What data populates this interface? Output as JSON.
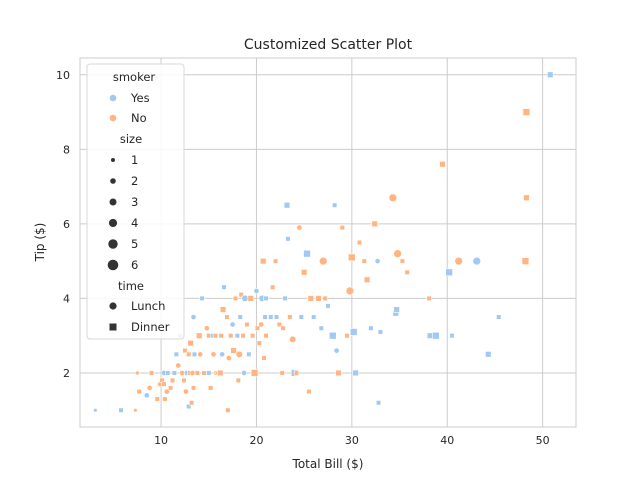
{
  "chart_data": {
    "type": "scatter",
    "title": "Customized Scatter Plot",
    "xlabel": "Total Bill ($)",
    "ylabel": "Tip ($)",
    "xlim": [
      1.5,
      53.5
    ],
    "ylim": [
      0.55,
      10.45
    ],
    "xticks": [
      10,
      20,
      30,
      40,
      50
    ],
    "yticks": [
      2,
      4,
      6,
      8,
      10
    ],
    "grid": true,
    "legend_placement": "upper-left",
    "colors": {
      "Yes": "#a1c9f4",
      "No": "#ffb482"
    },
    "legend": {
      "hue_title": "smoker",
      "hue_levels": [
        "Yes",
        "No"
      ],
      "size_title": "size",
      "size_levels": [
        "1",
        "2",
        "3",
        "4",
        "5",
        "6"
      ],
      "style_title": "time",
      "style_levels": [
        "Lunch",
        "Dinner"
      ]
    },
    "points": [
      {
        "x": 3.1,
        "y": 1.0,
        "smoker": "Yes",
        "time": "Dinner",
        "size": 1
      },
      {
        "x": 5.8,
        "y": 1.0,
        "smoker": "Yes",
        "time": "Dinner",
        "size": 2
      },
      {
        "x": 7.3,
        "y": 1.0,
        "smoker": "No",
        "time": "Dinner",
        "size": 1
      },
      {
        "x": 7.5,
        "y": 2.0,
        "smoker": "No",
        "time": "Lunch",
        "size": 1
      },
      {
        "x": 7.7,
        "y": 1.5,
        "smoker": "No",
        "time": "Dinner",
        "size": 2
      },
      {
        "x": 8.5,
        "y": 1.4,
        "smoker": "Yes",
        "time": "Lunch",
        "size": 2
      },
      {
        "x": 8.8,
        "y": 1.6,
        "smoker": "No",
        "time": "Lunch",
        "size": 2
      },
      {
        "x": 9.0,
        "y": 2.0,
        "smoker": "No",
        "time": "Dinner",
        "size": 2
      },
      {
        "x": 9.6,
        "y": 1.3,
        "smoker": "No",
        "time": "Dinner",
        "size": 2
      },
      {
        "x": 9.9,
        "y": 1.7,
        "smoker": "No",
        "time": "Lunch",
        "size": 2
      },
      {
        "x": 10.1,
        "y": 1.8,
        "smoker": "No",
        "time": "Dinner",
        "size": 2
      },
      {
        "x": 10.3,
        "y": 2.0,
        "smoker": "Yes",
        "time": "Lunch",
        "size": 2
      },
      {
        "x": 10.3,
        "y": 1.7,
        "smoker": "No",
        "time": "Dinner",
        "size": 2
      },
      {
        "x": 10.4,
        "y": 1.3,
        "smoker": "No",
        "time": "Dinner",
        "size": 2
      },
      {
        "x": 10.6,
        "y": 1.5,
        "smoker": "No",
        "time": "Lunch",
        "size": 2
      },
      {
        "x": 10.7,
        "y": 2.0,
        "smoker": "Yes",
        "time": "Dinner",
        "size": 2
      },
      {
        "x": 11.0,
        "y": 1.6,
        "smoker": "No",
        "time": "Dinner",
        "size": 2
      },
      {
        "x": 11.2,
        "y": 1.8,
        "smoker": "No",
        "time": "Dinner",
        "size": 2
      },
      {
        "x": 11.4,
        "y": 2.0,
        "smoker": "Yes",
        "time": "Dinner",
        "size": 2
      },
      {
        "x": 11.6,
        "y": 2.5,
        "smoker": "Yes",
        "time": "Dinner",
        "size": 2
      },
      {
        "x": 11.8,
        "y": 2.2,
        "smoker": "No",
        "time": "Lunch",
        "size": 2
      },
      {
        "x": 12.0,
        "y": 3.0,
        "smoker": "Yes",
        "time": "Lunch",
        "size": 2
      },
      {
        "x": 12.2,
        "y": 2.0,
        "smoker": "No",
        "time": "Lunch",
        "size": 2
      },
      {
        "x": 12.4,
        "y": 1.8,
        "smoker": "No",
        "time": "Dinner",
        "size": 2
      },
      {
        "x": 12.5,
        "y": 2.6,
        "smoker": "No",
        "time": "Dinner",
        "size": 2
      },
      {
        "x": 12.6,
        "y": 1.5,
        "smoker": "No",
        "time": "Lunch",
        "size": 2
      },
      {
        "x": 12.7,
        "y": 2.0,
        "smoker": "Yes",
        "time": "Lunch",
        "size": 2
      },
      {
        "x": 12.9,
        "y": 1.1,
        "smoker": "Yes",
        "time": "Dinner",
        "size": 2
      },
      {
        "x": 12.9,
        "y": 2.5,
        "smoker": "No",
        "time": "Dinner",
        "size": 2
      },
      {
        "x": 13.0,
        "y": 2.0,
        "smoker": "No",
        "time": "Dinner",
        "size": 2
      },
      {
        "x": 13.1,
        "y": 2.8,
        "smoker": "No",
        "time": "Dinner",
        "size": 3
      },
      {
        "x": 13.2,
        "y": 1.2,
        "smoker": "No",
        "time": "Dinner",
        "size": 2
      },
      {
        "x": 13.3,
        "y": 2.0,
        "smoker": "No",
        "time": "Lunch",
        "size": 2
      },
      {
        "x": 13.4,
        "y": 3.5,
        "smoker": "Yes",
        "time": "Lunch",
        "size": 2
      },
      {
        "x": 13.4,
        "y": 1.6,
        "smoker": "No",
        "time": "Dinner",
        "size": 2
      },
      {
        "x": 13.5,
        "y": 2.5,
        "smoker": "Yes",
        "time": "Dinner",
        "size": 2
      },
      {
        "x": 13.8,
        "y": 2.0,
        "smoker": "No",
        "time": "Dinner",
        "size": 2
      },
      {
        "x": 14.0,
        "y": 3.0,
        "smoker": "No",
        "time": "Dinner",
        "size": 3
      },
      {
        "x": 14.1,
        "y": 2.5,
        "smoker": "No",
        "time": "Lunch",
        "size": 2
      },
      {
        "x": 14.3,
        "y": 4.0,
        "smoker": "Yes",
        "time": "Dinner",
        "size": 2
      },
      {
        "x": 14.5,
        "y": 2.0,
        "smoker": "No",
        "time": "Dinner",
        "size": 2
      },
      {
        "x": 14.8,
        "y": 3.2,
        "smoker": "No",
        "time": "Lunch",
        "size": 2
      },
      {
        "x": 15.0,
        "y": 2.0,
        "smoker": "Yes",
        "time": "Dinner",
        "size": 2
      },
      {
        "x": 15.0,
        "y": 3.0,
        "smoker": "No",
        "time": "Dinner",
        "size": 2
      },
      {
        "x": 15.2,
        "y": 1.6,
        "smoker": "No",
        "time": "Dinner",
        "size": 2
      },
      {
        "x": 15.4,
        "y": 3.0,
        "smoker": "Yes",
        "time": "Dinner",
        "size": 2
      },
      {
        "x": 15.5,
        "y": 2.5,
        "smoker": "No",
        "time": "Lunch",
        "size": 2
      },
      {
        "x": 15.7,
        "y": 3.0,
        "smoker": "No",
        "time": "Dinner",
        "size": 2
      },
      {
        "x": 15.8,
        "y": 2.0,
        "smoker": "No",
        "time": "Dinner",
        "size": 2
      },
      {
        "x": 16.0,
        "y": 2.0,
        "smoker": "No",
        "time": "Lunch",
        "size": 2
      },
      {
        "x": 16.2,
        "y": 2.0,
        "smoker": "No",
        "time": "Dinner",
        "size": 3
      },
      {
        "x": 16.3,
        "y": 3.0,
        "smoker": "No",
        "time": "Dinner",
        "size": 2
      },
      {
        "x": 16.4,
        "y": 2.5,
        "smoker": "Yes",
        "time": "Lunch",
        "size": 2
      },
      {
        "x": 16.5,
        "y": 3.7,
        "smoker": "No",
        "time": "Dinner",
        "size": 3
      },
      {
        "x": 16.6,
        "y": 4.3,
        "smoker": "Yes",
        "time": "Dinner",
        "size": 2
      },
      {
        "x": 16.9,
        "y": 3.5,
        "smoker": "No",
        "time": "Dinner",
        "size": 2
      },
      {
        "x": 17.0,
        "y": 1.0,
        "smoker": "No",
        "time": "Dinner",
        "size": 2
      },
      {
        "x": 17.1,
        "y": 2.4,
        "smoker": "No",
        "time": "Lunch",
        "size": 2
      },
      {
        "x": 17.3,
        "y": 3.0,
        "smoker": "No",
        "time": "Dinner",
        "size": 2
      },
      {
        "x": 17.5,
        "y": 3.3,
        "smoker": "Yes",
        "time": "Lunch",
        "size": 2
      },
      {
        "x": 17.6,
        "y": 2.6,
        "smoker": "No",
        "time": "Dinner",
        "size": 3
      },
      {
        "x": 17.8,
        "y": 4.0,
        "smoker": "No",
        "time": "Dinner",
        "size": 2
      },
      {
        "x": 18.0,
        "y": 3.0,
        "smoker": "Yes",
        "time": "Dinner",
        "size": 2
      },
      {
        "x": 18.1,
        "y": 1.8,
        "smoker": "No",
        "time": "Dinner",
        "size": 2
      },
      {
        "x": 18.2,
        "y": 2.5,
        "smoker": "No",
        "time": "Lunch",
        "size": 3
      },
      {
        "x": 18.3,
        "y": 3.5,
        "smoker": "Yes",
        "time": "Dinner",
        "size": 2
      },
      {
        "x": 18.4,
        "y": 4.1,
        "smoker": "No",
        "time": "Dinner",
        "size": 2
      },
      {
        "x": 18.6,
        "y": 3.0,
        "smoker": "No",
        "time": "Dinner",
        "size": 2
      },
      {
        "x": 18.7,
        "y": 2.0,
        "smoker": "Yes",
        "time": "Lunch",
        "size": 2
      },
      {
        "x": 18.8,
        "y": 4.0,
        "smoker": "Yes",
        "time": "Lunch",
        "size": 3
      },
      {
        "x": 19.0,
        "y": 3.3,
        "smoker": "No",
        "time": "Dinner",
        "size": 2
      },
      {
        "x": 19.2,
        "y": 2.5,
        "smoker": "Yes",
        "time": "Dinner",
        "size": 2
      },
      {
        "x": 19.4,
        "y": 4.0,
        "smoker": "No",
        "time": "Dinner",
        "size": 3
      },
      {
        "x": 19.6,
        "y": 3.0,
        "smoker": "No",
        "time": "Dinner",
        "size": 2
      },
      {
        "x": 19.8,
        "y": 2.0,
        "smoker": "No",
        "time": "Dinner",
        "size": 4
      },
      {
        "x": 20.0,
        "y": 4.2,
        "smoker": "Yes",
        "time": "Lunch",
        "size": 2
      },
      {
        "x": 20.1,
        "y": 3.2,
        "smoker": "No",
        "time": "Dinner",
        "size": 2
      },
      {
        "x": 20.3,
        "y": 2.8,
        "smoker": "No",
        "time": "Dinner",
        "size": 2
      },
      {
        "x": 20.5,
        "y": 3.3,
        "smoker": "No",
        "time": "Lunch",
        "size": 2
      },
      {
        "x": 20.6,
        "y": 4.0,
        "smoker": "Yes",
        "time": "Lunch",
        "size": 3
      },
      {
        "x": 20.7,
        "y": 5.0,
        "smoker": "No",
        "time": "Dinner",
        "size": 3
      },
      {
        "x": 20.8,
        "y": 2.4,
        "smoker": "No",
        "time": "Dinner",
        "size": 2
      },
      {
        "x": 20.9,
        "y": 3.5,
        "smoker": "Yes",
        "time": "Dinner",
        "size": 2
      },
      {
        "x": 21.0,
        "y": 3.0,
        "smoker": "No",
        "time": "Dinner",
        "size": 2
      },
      {
        "x": 21.0,
        "y": 4.0,
        "smoker": "Yes",
        "time": "Dinner",
        "size": 2
      },
      {
        "x": 21.5,
        "y": 3.5,
        "smoker": "Yes",
        "time": "Dinner",
        "size": 2
      },
      {
        "x": 21.7,
        "y": 4.3,
        "smoker": "No",
        "time": "Dinner",
        "size": 2
      },
      {
        "x": 22.0,
        "y": 5.0,
        "smoker": "No",
        "time": "Dinner",
        "size": 2
      },
      {
        "x": 22.1,
        "y": 3.5,
        "smoker": "Yes",
        "time": "Dinner",
        "size": 2
      },
      {
        "x": 22.4,
        "y": 3.3,
        "smoker": "No",
        "time": "Dinner",
        "size": 2
      },
      {
        "x": 22.7,
        "y": 2.0,
        "smoker": "No",
        "time": "Dinner",
        "size": 2
      },
      {
        "x": 22.8,
        "y": 3.2,
        "smoker": "No",
        "time": "Dinner",
        "size": 2
      },
      {
        "x": 23.0,
        "y": 4.0,
        "smoker": "Yes",
        "time": "Dinner",
        "size": 2
      },
      {
        "x": 23.2,
        "y": 6.5,
        "smoker": "Yes",
        "time": "Dinner",
        "size": 3
      },
      {
        "x": 23.3,
        "y": 5.6,
        "smoker": "Yes",
        "time": "Dinner",
        "size": 2
      },
      {
        "x": 23.5,
        "y": 3.5,
        "smoker": "No",
        "time": "Dinner",
        "size": 2
      },
      {
        "x": 23.8,
        "y": 2.9,
        "smoker": "No",
        "time": "Lunch",
        "size": 3
      },
      {
        "x": 24.0,
        "y": 2.0,
        "smoker": "Yes",
        "time": "Dinner",
        "size": 4
      },
      {
        "x": 24.2,
        "y": 2.0,
        "smoker": "No",
        "time": "Dinner",
        "size": 2
      },
      {
        "x": 24.5,
        "y": 5.9,
        "smoker": "No",
        "time": "Lunch",
        "size": 2
      },
      {
        "x": 24.7,
        "y": 3.5,
        "smoker": "Yes",
        "time": "Dinner",
        "size": 2
      },
      {
        "x": 25.0,
        "y": 4.7,
        "smoker": "No",
        "time": "Dinner",
        "size": 3
      },
      {
        "x": 25.3,
        "y": 5.2,
        "smoker": "Yes",
        "time": "Dinner",
        "size": 4
      },
      {
        "x": 25.5,
        "y": 1.5,
        "smoker": "No",
        "time": "Dinner",
        "size": 2
      },
      {
        "x": 25.7,
        "y": 4.0,
        "smoker": "No",
        "time": "Dinner",
        "size": 3
      },
      {
        "x": 26.0,
        "y": 3.5,
        "smoker": "Yes",
        "time": "Dinner",
        "size": 2
      },
      {
        "x": 26.5,
        "y": 4.0,
        "smoker": "No",
        "time": "Dinner",
        "size": 3
      },
      {
        "x": 26.8,
        "y": 3.2,
        "smoker": "Yes",
        "time": "Dinner",
        "size": 2
      },
      {
        "x": 27.0,
        "y": 5.0,
        "smoker": "No",
        "time": "Lunch",
        "size": 4
      },
      {
        "x": 27.2,
        "y": 4.0,
        "smoker": "No",
        "time": "Dinner",
        "size": 2
      },
      {
        "x": 27.5,
        "y": 3.8,
        "smoker": "Yes",
        "time": "Dinner",
        "size": 2
      },
      {
        "x": 28.0,
        "y": 3.0,
        "smoker": "Yes",
        "time": "Dinner",
        "size": 4
      },
      {
        "x": 28.2,
        "y": 6.5,
        "smoker": "Yes",
        "time": "Dinner",
        "size": 2
      },
      {
        "x": 28.4,
        "y": 2.6,
        "smoker": "Yes",
        "time": "Lunch",
        "size": 2
      },
      {
        "x": 28.6,
        "y": 2.0,
        "smoker": "No",
        "time": "Dinner",
        "size": 3
      },
      {
        "x": 29.0,
        "y": 5.9,
        "smoker": "No",
        "time": "Dinner",
        "size": 2
      },
      {
        "x": 29.5,
        "y": 3.0,
        "smoker": "No",
        "time": "Dinner",
        "size": 2
      },
      {
        "x": 29.8,
        "y": 4.2,
        "smoker": "No",
        "time": "Lunch",
        "size": 4
      },
      {
        "x": 30.0,
        "y": 5.1,
        "smoker": "No",
        "time": "Dinner",
        "size": 4
      },
      {
        "x": 30.2,
        "y": 3.1,
        "smoker": "Yes",
        "time": "Dinner",
        "size": 4
      },
      {
        "x": 30.4,
        "y": 2.0,
        "smoker": "Yes",
        "time": "Dinner",
        "size": 3
      },
      {
        "x": 30.8,
        "y": 5.5,
        "smoker": "No",
        "time": "Dinner",
        "size": 2
      },
      {
        "x": 31.3,
        "y": 5.0,
        "smoker": "No",
        "time": "Dinner",
        "size": 2
      },
      {
        "x": 31.6,
        "y": 4.5,
        "smoker": "No",
        "time": "Dinner",
        "size": 3
      },
      {
        "x": 32.0,
        "y": 3.2,
        "smoker": "Yes",
        "time": "Dinner",
        "size": 2
      },
      {
        "x": 32.4,
        "y": 6.0,
        "smoker": "No",
        "time": "Dinner",
        "size": 3
      },
      {
        "x": 32.7,
        "y": 5.0,
        "smoker": "Yes",
        "time": "Lunch",
        "size": 2
      },
      {
        "x": 32.8,
        "y": 1.2,
        "smoker": "Yes",
        "time": "Dinner",
        "size": 2
      },
      {
        "x": 33.0,
        "y": 3.1,
        "smoker": "Yes",
        "time": "Dinner",
        "size": 2
      },
      {
        "x": 34.3,
        "y": 6.7,
        "smoker": "No",
        "time": "Lunch",
        "size": 4
      },
      {
        "x": 34.6,
        "y": 3.6,
        "smoker": "Yes",
        "time": "Dinner",
        "size": 3
      },
      {
        "x": 34.7,
        "y": 3.7,
        "smoker": "Yes",
        "time": "Dinner",
        "size": 3
      },
      {
        "x": 34.8,
        "y": 5.2,
        "smoker": "No",
        "time": "Lunch",
        "size": 4
      },
      {
        "x": 35.3,
        "y": 5.0,
        "smoker": "No",
        "time": "Dinner",
        "size": 2
      },
      {
        "x": 35.8,
        "y": 4.7,
        "smoker": "No",
        "time": "Dinner",
        "size": 2
      },
      {
        "x": 38.1,
        "y": 4.0,
        "smoker": "No",
        "time": "Dinner",
        "size": 2
      },
      {
        "x": 38.2,
        "y": 3.0,
        "smoker": "Yes",
        "time": "Dinner",
        "size": 3
      },
      {
        "x": 38.8,
        "y": 3.0,
        "smoker": "Yes",
        "time": "Dinner",
        "size": 4
      },
      {
        "x": 39.5,
        "y": 7.6,
        "smoker": "No",
        "time": "Dinner",
        "size": 3
      },
      {
        "x": 40.2,
        "y": 4.7,
        "smoker": "Yes",
        "time": "Dinner",
        "size": 4
      },
      {
        "x": 40.5,
        "y": 3.0,
        "smoker": "Yes",
        "time": "Dinner",
        "size": 2
      },
      {
        "x": 41.2,
        "y": 5.0,
        "smoker": "No",
        "time": "Lunch",
        "size": 4
      },
      {
        "x": 43.1,
        "y": 5.0,
        "smoker": "Yes",
        "time": "Lunch",
        "size": 4
      },
      {
        "x": 44.3,
        "y": 2.5,
        "smoker": "Yes",
        "time": "Dinner",
        "size": 3
      },
      {
        "x": 45.4,
        "y": 3.5,
        "smoker": "Yes",
        "time": "Dinner",
        "size": 2
      },
      {
        "x": 48.2,
        "y": 5.0,
        "smoker": "No",
        "time": "Dinner",
        "size": 4
      },
      {
        "x": 48.3,
        "y": 9.0,
        "smoker": "No",
        "time": "Dinner",
        "size": 4
      },
      {
        "x": 48.3,
        "y": 6.7,
        "smoker": "No",
        "time": "Dinner",
        "size": 3
      },
      {
        "x": 50.8,
        "y": 10.0,
        "smoker": "Yes",
        "time": "Dinner",
        "size": 3
      }
    ]
  }
}
